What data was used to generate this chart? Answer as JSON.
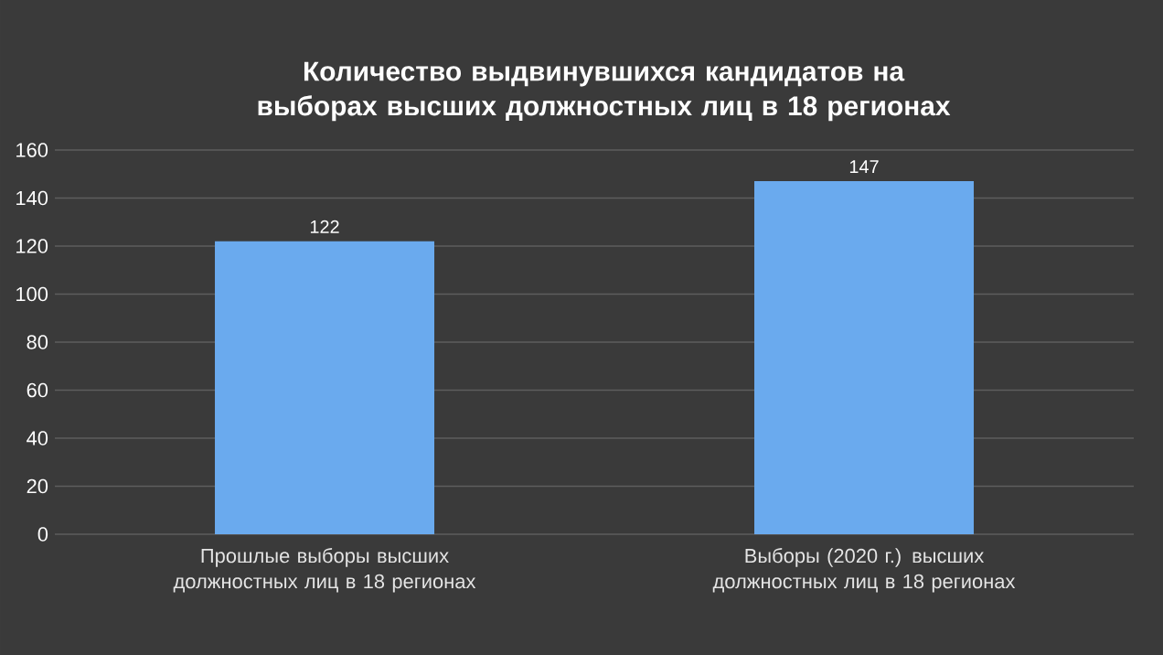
{
  "chart_data": {
    "type": "bar",
    "title": "Количество выдвинувшихся кандидатов на выборах высших должностных лиц в 18 регионах",
    "categories": [
      "Прошлые выборы высших должностных лиц в 18 регионах",
      "Выборы (2020 г.) высших должностных лиц в 18 регионах"
    ],
    "values": [
      122,
      147
    ],
    "color": "#6aaaee",
    "ylim": [
      0,
      160
    ],
    "yticks": [
      0,
      20,
      40,
      60,
      80,
      100,
      120,
      140,
      160
    ],
    "grid": "y",
    "data_labels": true
  }
}
